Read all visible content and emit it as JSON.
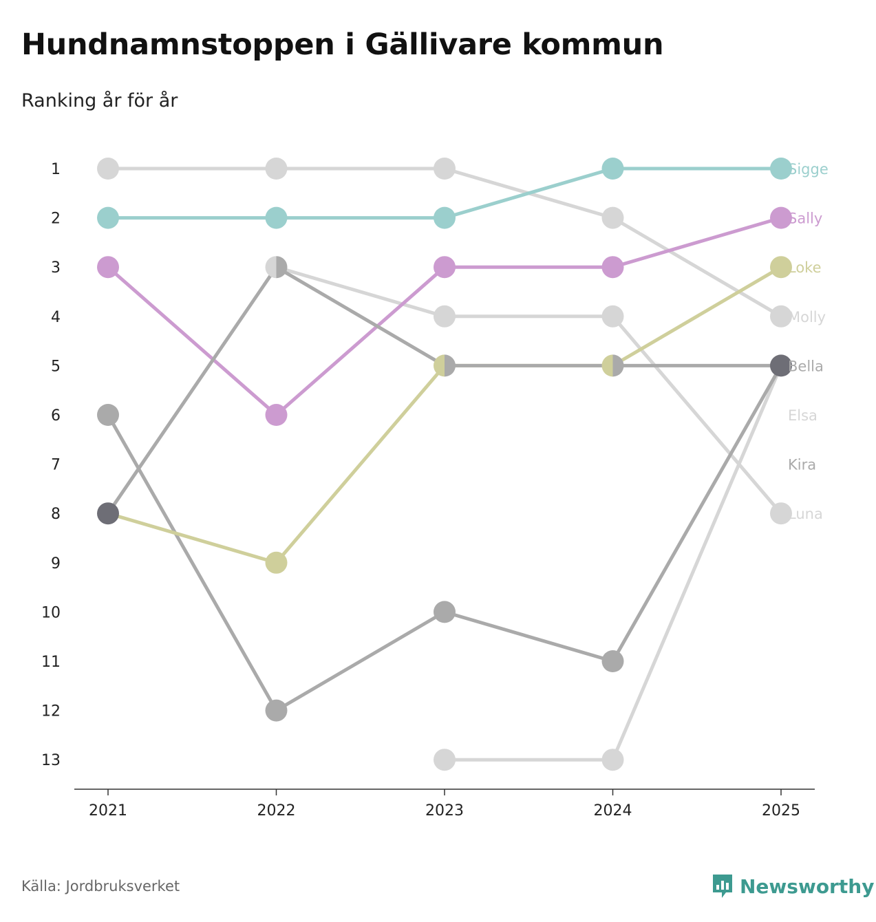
{
  "title": "Hundnamnstoppen i Gällivare kommun",
  "subtitle": "Ranking år för år",
  "source": "Källa: Jordbruksverket",
  "brand": "Newsworthy",
  "colors": {
    "Sigge": "#9bcfcd",
    "Sally": "#cc9bd0",
    "Loke": "#cfcf9b",
    "Molly": "#d6d6d6",
    "Bella": "#aaaaaa",
    "Bella_end": "#6e6e76",
    "Elsa": "#d6d6d6",
    "Kira": "#aaaaaa",
    "Luna": "#d6d6d6",
    "brand": "#3d9a90"
  },
  "chart_data": {
    "type": "line",
    "chart_kind": "bump",
    "title": "Hundnamnstoppen i Gällivare kommun",
    "subtitle": "Ranking år för år",
    "x": [
      "2021",
      "2022",
      "2023",
      "2024",
      "2025"
    ],
    "y_ticks": [
      1,
      2,
      3,
      4,
      5,
      6,
      7,
      8,
      9,
      10,
      11,
      12,
      13
    ],
    "ylim": [
      1,
      13
    ],
    "y_inverted": true,
    "series": [
      {
        "name": "Molly",
        "values": [
          1,
          1,
          1,
          2,
          4
        ]
      },
      {
        "name": "Luna",
        "values": [
          null,
          3,
          4,
          4,
          8
        ]
      },
      {
        "name": "Elsa",
        "values": [
          null,
          null,
          13,
          13,
          5
        ]
      },
      {
        "name": "Kira",
        "values": [
          6,
          12,
          10,
          11,
          5
        ]
      },
      {
        "name": "Sigge",
        "values": [
          2,
          2,
          2,
          1,
          1
        ]
      },
      {
        "name": "Sally",
        "values": [
          3,
          6,
          3,
          3,
          2
        ]
      },
      {
        "name": "Loke",
        "values": [
          8,
          9,
          5,
          5,
          3
        ]
      },
      {
        "name": "Bella",
        "values": [
          8,
          3,
          5,
          5,
          5
        ]
      }
    ],
    "end_labels": [
      {
        "name": "Sigge",
        "rank": 1
      },
      {
        "name": "Sally",
        "rank": 2
      },
      {
        "name": "Loke",
        "rank": 3
      },
      {
        "name": "Molly",
        "rank": 4
      },
      {
        "name": "Bella",
        "rank": 5
      },
      {
        "name": "Elsa",
        "rank": 6
      },
      {
        "name": "Kira",
        "rank": 7
      },
      {
        "name": "Luna",
        "rank": 8
      }
    ]
  }
}
